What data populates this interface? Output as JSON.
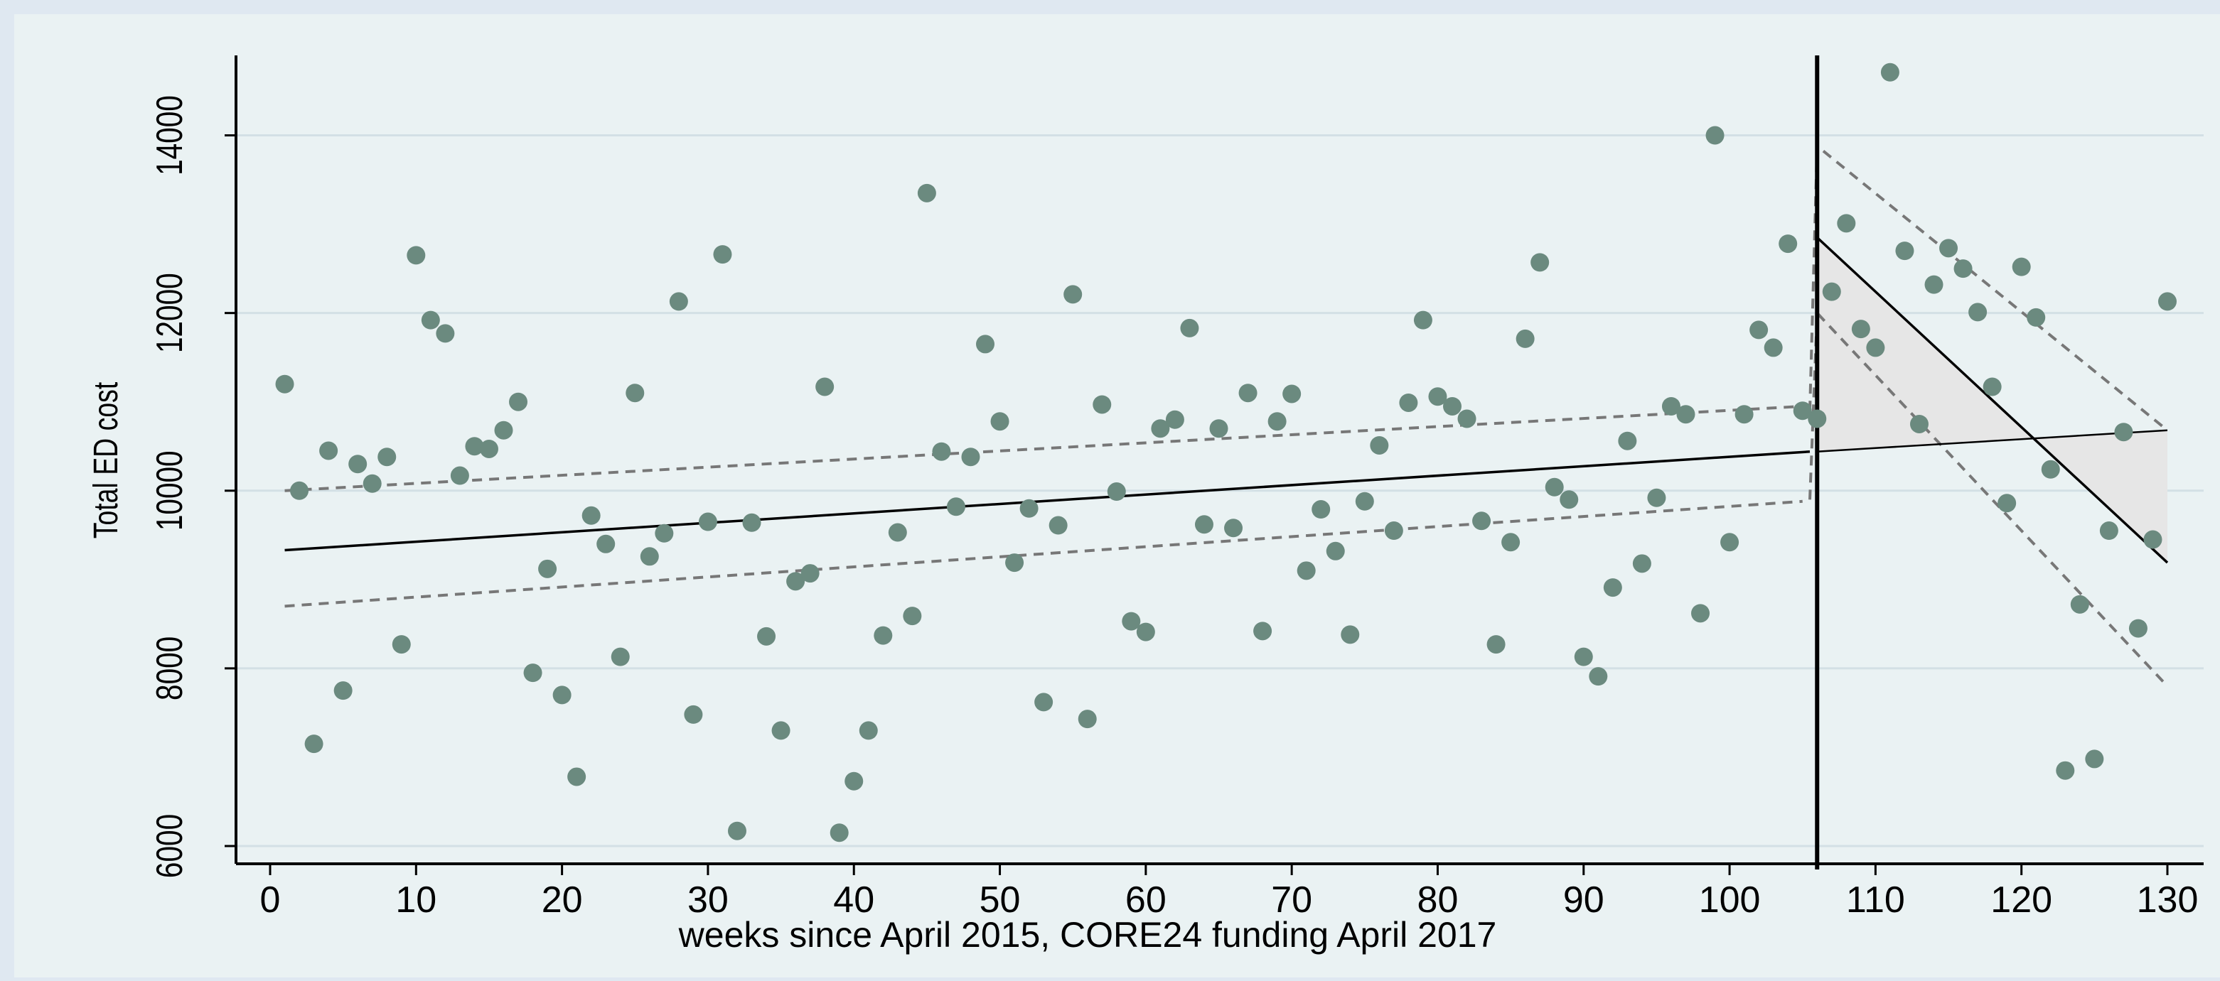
{
  "chart_data": {
    "type": "scatter",
    "title": "",
    "xlabel": "weeks since April 2015, CORE24 funding April 2017",
    "ylabel": "Total ED cost",
    "xlim": [
      0,
      132
    ],
    "ylim": [
      5800,
      14900
    ],
    "xticks": [
      0,
      10,
      20,
      30,
      40,
      50,
      60,
      70,
      80,
      90,
      100,
      110,
      120,
      130
    ],
    "yticks": [
      6000,
      8000,
      10000,
      12000,
      14000
    ],
    "grid": "horizontal",
    "legend": "none",
    "colors": {
      "points": "#6b8a7f",
      "fit": "#000000",
      "ci": "#777777",
      "shaded_gap": "#e6e6e6",
      "background": "#dfe8f1",
      "plot": "#eaf2f3"
    },
    "points": [
      [
        1,
        11200
      ],
      [
        2,
        10000
      ],
      [
        3,
        7150
      ],
      [
        4,
        10450
      ],
      [
        5,
        7750
      ],
      [
        6,
        10300
      ],
      [
        7,
        10080
      ],
      [
        8,
        10380
      ],
      [
        9,
        8270
      ],
      [
        10,
        12650
      ],
      [
        11,
        11920
      ],
      [
        12,
        11770
      ],
      [
        13,
        10170
      ],
      [
        14,
        10500
      ],
      [
        15,
        10470
      ],
      [
        16,
        10680
      ],
      [
        17,
        11000
      ],
      [
        18,
        7950
      ],
      [
        19,
        9120
      ],
      [
        20,
        7700
      ],
      [
        21,
        6780
      ],
      [
        22,
        9720
      ],
      [
        23,
        9400
      ],
      [
        24,
        8130
      ],
      [
        25,
        11100
      ],
      [
        26,
        9260
      ],
      [
        27,
        9520
      ],
      [
        28,
        12130
      ],
      [
        29,
        7480
      ],
      [
        30,
        9650
      ],
      [
        31,
        12660
      ],
      [
        32,
        6170
      ],
      [
        33,
        9640
      ],
      [
        34,
        8360
      ],
      [
        35,
        7300
      ],
      [
        36,
        8980
      ],
      [
        37,
        9070
      ],
      [
        38,
        11170
      ],
      [
        39,
        6150
      ],
      [
        40,
        6730
      ],
      [
        41,
        7300
      ],
      [
        42,
        8370
      ],
      [
        43,
        9530
      ],
      [
        44,
        8590
      ],
      [
        45,
        13350
      ],
      [
        46,
        10440
      ],
      [
        47,
        9820
      ],
      [
        48,
        10380
      ],
      [
        49,
        11650
      ],
      [
        50,
        10780
      ],
      [
        51,
        9190
      ],
      [
        52,
        9800
      ],
      [
        53,
        7620
      ],
      [
        54,
        9610
      ],
      [
        55,
        12210
      ],
      [
        56,
        7430
      ],
      [
        57,
        10970
      ],
      [
        58,
        9990
      ],
      [
        59,
        8530
      ],
      [
        60,
        8410
      ],
      [
        61,
        10700
      ],
      [
        62,
        10800
      ],
      [
        63,
        11830
      ],
      [
        64,
        9620
      ],
      [
        65,
        10700
      ],
      [
        66,
        9580
      ],
      [
        67,
        11100
      ],
      [
        68,
        8420
      ],
      [
        69,
        10780
      ],
      [
        70,
        11090
      ],
      [
        71,
        9100
      ],
      [
        72,
        9790
      ],
      [
        73,
        9320
      ],
      [
        74,
        8380
      ],
      [
        75,
        9880
      ],
      [
        76,
        10510
      ],
      [
        77,
        9550
      ],
      [
        78,
        10990
      ],
      [
        79,
        11920
      ],
      [
        80,
        11060
      ],
      [
        81,
        10950
      ],
      [
        82,
        10810
      ],
      [
        83,
        9660
      ],
      [
        84,
        8270
      ],
      [
        85,
        9420
      ],
      [
        86,
        11710
      ],
      [
        87,
        12570
      ],
      [
        88,
        10040
      ],
      [
        89,
        9900
      ],
      [
        90,
        8130
      ],
      [
        91,
        7910
      ],
      [
        92,
        8910
      ],
      [
        93,
        10560
      ],
      [
        94,
        9180
      ],
      [
        95,
        9920
      ],
      [
        96,
        10950
      ],
      [
        97,
        10860
      ],
      [
        98,
        8620
      ],
      [
        99,
        14000
      ],
      [
        100,
        9420
      ],
      [
        101,
        10860
      ],
      [
        102,
        11810
      ],
      [
        103,
        11610
      ],
      [
        104,
        12780
      ],
      [
        105,
        10900
      ],
      [
        106,
        10810
      ],
      [
        107,
        12240
      ],
      [
        108,
        13010
      ],
      [
        109,
        11820
      ],
      [
        110,
        11610
      ],
      [
        111,
        14710
      ],
      [
        112,
        12700
      ],
      [
        113,
        10750
      ],
      [
        114,
        12320
      ],
      [
        115,
        12730
      ],
      [
        116,
        12500
      ],
      [
        117,
        12010
      ],
      [
        118,
        11170
      ],
      [
        119,
        9860
      ],
      [
        120,
        12520
      ],
      [
        121,
        11950
      ],
      [
        122,
        10240
      ],
      [
        123,
        6850
      ],
      [
        124,
        8720
      ],
      [
        125,
        6980
      ],
      [
        126,
        9550
      ],
      [
        127,
        10660
      ],
      [
        128,
        8450
      ],
      [
        129,
        9450
      ],
      [
        130,
        12130
      ]
    ],
    "fit_pre": [
      [
        1,
        9330
      ],
      [
        105.5,
        10440
      ]
    ],
    "ci_pre_upper": [
      [
        1,
        10000
      ],
      [
        105,
        10950
      ]
    ],
    "ci_pre_lower": [
      [
        1,
        8700
      ],
      [
        105,
        9880
      ]
    ],
    "fit_post": [
      [
        106,
        12850
      ],
      [
        130,
        9190
      ]
    ],
    "counterfactual": [
      [
        106,
        10440
      ],
      [
        130,
        10680
      ]
    ],
    "ci_post_upper": [
      [
        105.5,
        10900
      ],
      [
        106,
        13880
      ],
      [
        130,
        10680
      ]
    ],
    "ci_post_lower": [
      [
        105.5,
        9900
      ],
      [
        106,
        12000
      ],
      [
        130,
        7800
      ]
    ],
    "intervention_x": 106
  }
}
